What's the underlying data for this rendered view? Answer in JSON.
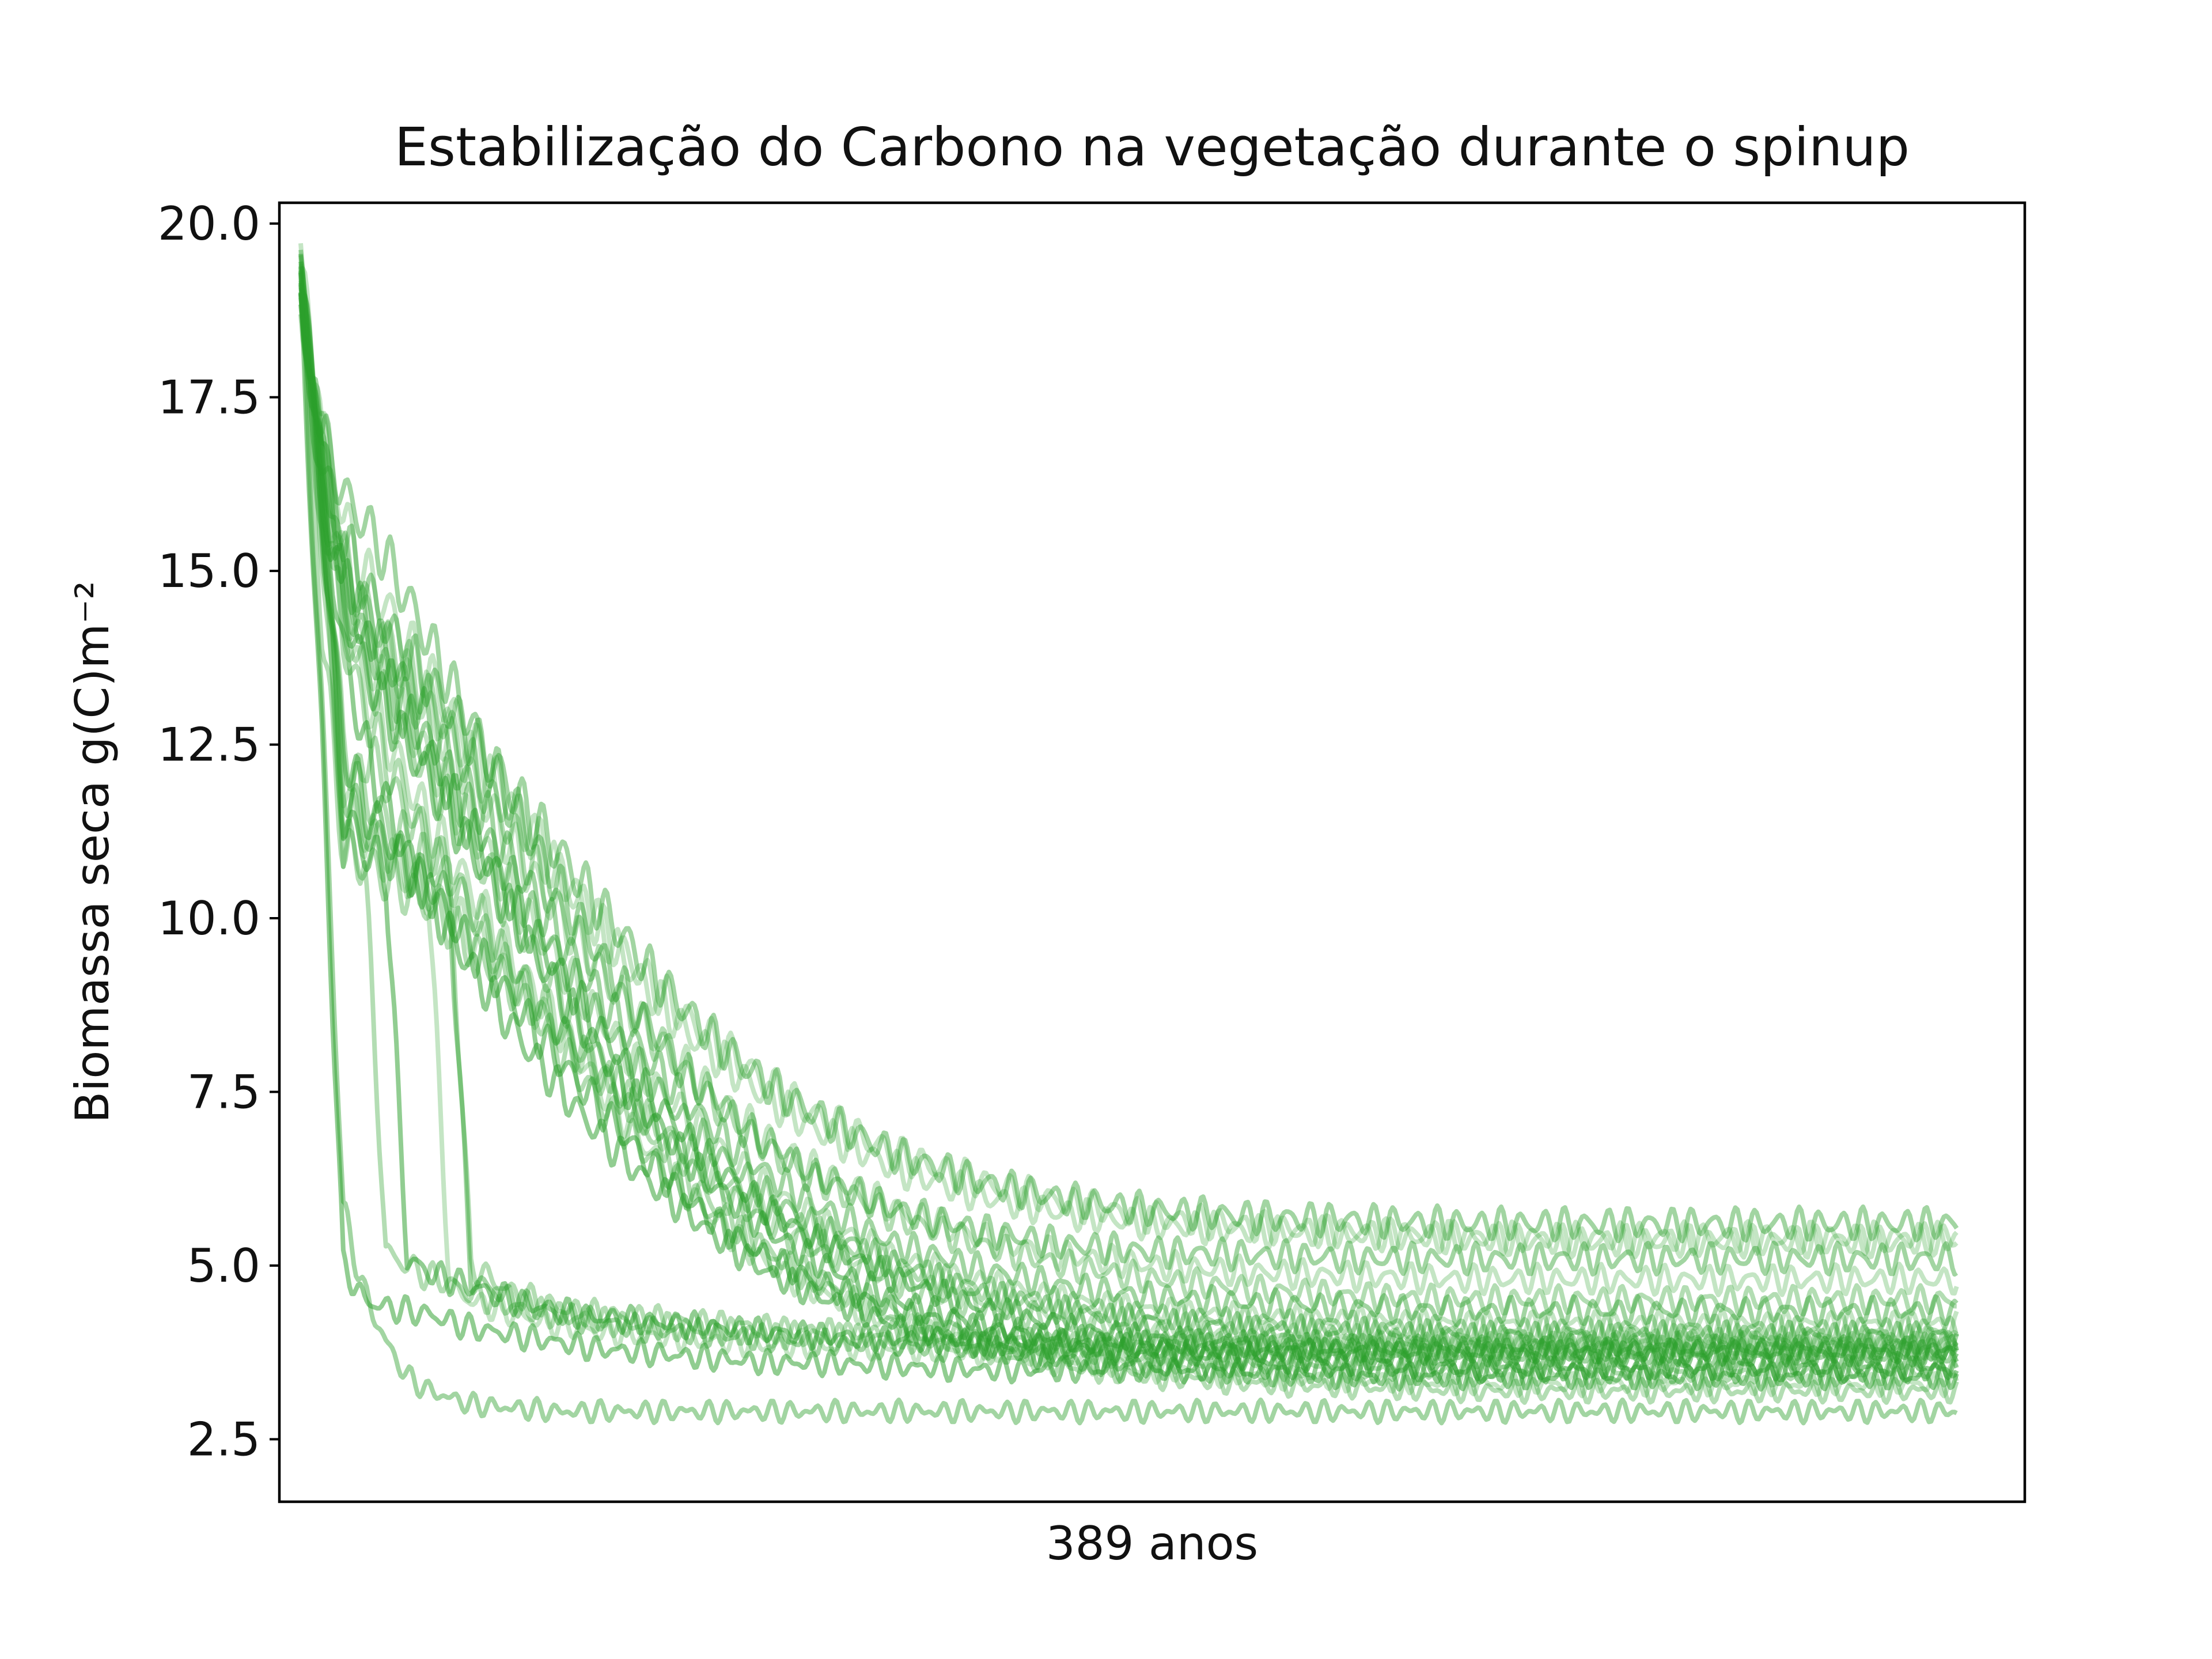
{
  "chart_data": {
    "type": "line",
    "title": "Estabilização do Carbono na vegetação durante o spinup",
    "xlabel": "389 anos",
    "ylabel": "Biomassa seca  g(C)m⁻²",
    "ylim": [
      1.6,
      20.3
    ],
    "xlim": [
      -5,
      405
    ],
    "x_ticks_shown": false,
    "y_ticks": [
      2.5,
      5.0,
      7.5,
      10.0,
      12.5,
      15.0,
      17.5,
      20.0
    ],
    "grid": false,
    "legend": "none",
    "line_color": "#2ca02c",
    "x_points": [
      0,
      5,
      10,
      15,
      20,
      25,
      30,
      35,
      40,
      50,
      60,
      70,
      80,
      90,
      100,
      110,
      120,
      140,
      160,
      180,
      200,
      225,
      250,
      275,
      300,
      325,
      350,
      375,
      389
    ],
    "series": [
      {
        "values": [
          19.3,
          17.2,
          15.8,
          15.0,
          14.5,
          14.0,
          13.5,
          13.0,
          12.5,
          11.6,
          10.7,
          9.9,
          9.2,
          8.6,
          8.1,
          7.6,
          7.2,
          6.6,
          6.2,
          5.9,
          5.7,
          5.55,
          5.45,
          5.4,
          5.35,
          5.35,
          5.35,
          5.35,
          5.4
        ]
      },
      {
        "values": [
          19.2,
          16.8,
          15.2,
          14.5,
          14.0,
          13.6,
          13.2,
          12.7,
          12.2,
          11.2,
          10.2,
          9.3,
          8.5,
          7.8,
          7.2,
          6.7,
          6.3,
          5.7,
          5.3,
          5.0,
          4.8,
          4.65,
          4.55,
          4.5,
          4.5,
          4.5,
          4.5,
          4.5,
          4.5
        ]
      },
      {
        "values": [
          19.1,
          16.5,
          14.8,
          14.0,
          13.5,
          13.0,
          12.5,
          12.0,
          11.5,
          10.5,
          9.5,
          8.6,
          7.8,
          7.1,
          6.5,
          6.0,
          5.6,
          5.0,
          4.6,
          4.35,
          4.2,
          4.1,
          4.05,
          4.0,
          4.0,
          4.0,
          4.0,
          4.0,
          4.0
        ]
      },
      {
        "values": [
          19.0,
          16.2,
          14.5,
          13.6,
          13.0,
          12.5,
          12.0,
          11.5,
          11.0,
          10.0,
          9.0,
          8.1,
          7.3,
          6.6,
          6.0,
          5.5,
          5.1,
          4.5,
          4.15,
          3.9,
          3.75,
          3.65,
          3.6,
          3.55,
          3.55,
          3.55,
          3.55,
          3.55,
          3.55
        ]
      },
      {
        "values": [
          19.2,
          16.0,
          14.2,
          13.3,
          12.6,
          12.0,
          11.4,
          10.9,
          10.4,
          9.4,
          8.5,
          7.6,
          6.8,
          6.1,
          5.5,
          5.0,
          4.65,
          4.15,
          3.85,
          3.65,
          3.5,
          3.4,
          3.35,
          3.3,
          3.3,
          3.3,
          3.3,
          3.3,
          3.3
        ]
      },
      {
        "values": [
          19.1,
          15.4,
          11.0,
          12.4,
          12.0,
          11.5,
          11.0,
          10.6,
          10.2,
          9.3,
          8.5,
          7.8,
          7.1,
          6.5,
          6.0,
          5.6,
          5.25,
          4.75,
          4.4,
          4.2,
          4.05,
          3.95,
          3.9,
          3.9,
          3.9,
          3.9,
          3.9,
          3.9,
          3.9
        ]
      },
      {
        "values": [
          19.3,
          16.6,
          15.5,
          14.8,
          14.2,
          13.8,
          13.4,
          13.0,
          12.6,
          11.8,
          11.0,
          10.2,
          9.4,
          8.7,
          8.1,
          7.6,
          7.2,
          6.6,
          6.2,
          5.95,
          5.8,
          5.7,
          5.65,
          5.6,
          5.6,
          5.6,
          5.6,
          5.6,
          5.6
        ]
      },
      {
        "values": [
          19.0,
          16.9,
          14.9,
          14.1,
          13.5,
          12.9,
          12.4,
          11.8,
          11.3,
          10.2,
          9.3,
          8.4,
          7.6,
          6.9,
          6.3,
          5.8,
          5.4,
          4.8,
          4.4,
          4.1,
          3.95,
          3.85,
          3.8,
          3.75,
          3.75,
          3.75,
          3.75,
          3.75,
          3.75
        ]
      },
      {
        "values": [
          19.2,
          17.0,
          15.2,
          14.4,
          13.9,
          13.4,
          13.0,
          12.5,
          12.0,
          11.0,
          10.1,
          9.3,
          8.5,
          7.9,
          7.3,
          6.8,
          6.4,
          5.8,
          5.4,
          5.15,
          5.0,
          4.9,
          4.85,
          4.8,
          4.8,
          4.8,
          4.8,
          4.8,
          4.8
        ]
      },
      {
        "values": [
          19.3,
          16.4,
          14.4,
          13.6,
          13.1,
          12.6,
          12.1,
          11.6,
          11.1,
          10.0,
          9.0,
          8.0,
          7.1,
          6.3,
          5.7,
          5.2,
          4.8,
          4.2,
          3.8,
          3.55,
          3.4,
          3.3,
          3.25,
          3.2,
          3.2,
          3.2,
          3.2,
          3.2,
          3.2
        ]
      },
      {
        "values": [
          19.1,
          16.7,
          15.0,
          14.3,
          13.8,
          13.3,
          12.8,
          12.3,
          11.8,
          10.8,
          9.8,
          8.9,
          8.1,
          7.4,
          6.8,
          6.3,
          5.9,
          5.3,
          4.95,
          4.7,
          4.55,
          4.45,
          4.4,
          4.35,
          4.35,
          4.35,
          4.35,
          4.35,
          4.35
        ]
      },
      {
        "values": [
          19.2,
          15.8,
          12.5,
          11.6,
          11.2,
          10.8,
          10.4,
          10.0,
          9.6,
          8.8,
          8.0,
          7.3,
          6.6,
          6.0,
          5.5,
          5.1,
          4.8,
          4.35,
          4.1,
          3.95,
          3.85,
          3.8,
          3.75,
          3.75,
          3.75,
          3.75,
          3.75,
          3.75,
          3.75
        ]
      },
      {
        "values": [
          19.3,
          16.3,
          11.6,
          11.3,
          11.0,
          10.7,
          10.4,
          10.1,
          9.8,
          9.1,
          8.4,
          7.8,
          7.2,
          6.6,
          6.1,
          5.7,
          5.35,
          4.85,
          4.5,
          4.3,
          4.15,
          4.05,
          4.0,
          3.95,
          3.95,
          3.95,
          3.95,
          3.95,
          3.95
        ]
      },
      {
        "values": [
          19.2,
          14.2,
          11.0,
          10.8,
          10.6,
          10.4,
          10.2,
          9.9,
          9.6,
          9.0,
          8.4,
          7.8,
          7.2,
          6.7,
          6.2,
          5.8,
          5.5,
          5.0,
          4.65,
          4.45,
          4.3,
          4.2,
          4.15,
          4.1,
          4.1,
          4.1,
          4.1,
          4.1,
          4.1
        ]
      },
      {
        "values": [
          19.1,
          17.0,
          16.1,
          15.7,
          15.2,
          14.6,
          14.0,
          13.4,
          12.8,
          11.6,
          10.5,
          9.5,
          8.6,
          7.8,
          7.2,
          6.7,
          6.3,
          5.8,
          5.5,
          5.3,
          5.2,
          5.15,
          5.1,
          5.1,
          5.1,
          5.1,
          5.1,
          5.1,
          5.1
        ]
      },
      {
        "values": [
          19.2,
          16.0,
          13.9,
          12.5,
          11.6,
          10.9,
          10.3,
          9.8,
          9.3,
          8.4,
          7.6,
          6.9,
          6.3,
          5.8,
          5.3,
          4.9,
          4.6,
          4.15,
          3.85,
          3.65,
          3.55,
          3.45,
          3.4,
          3.4,
          3.4,
          3.4,
          3.4,
          3.4,
          3.4
        ]
      },
      {
        "values": [
          19.3,
          16.9,
          15.0,
          14.3,
          13.9,
          13.5,
          13.1,
          12.7,
          12.3,
          11.5,
          10.7,
          9.9,
          9.1,
          8.4,
          7.9,
          7.4,
          7.0,
          6.4,
          6.0,
          5.75,
          5.6,
          5.5,
          5.45,
          5.4,
          5.4,
          5.4,
          5.4,
          5.4,
          5.4
        ]
      },
      {
        "values": [
          19.3,
          16.5,
          12.5,
          11.8,
          11.4,
          11.1,
          10.8,
          10.6,
          5.0,
          4.6,
          4.4,
          4.3,
          4.25,
          4.2,
          4.15,
          4.1,
          4.05,
          4.0,
          3.95,
          3.9,
          3.9,
          3.85,
          3.85,
          3.85,
          3.85,
          3.85,
          3.85,
          3.85,
          3.85
        ]
      },
      {
        "values": [
          19.2,
          16.0,
          12.0,
          11.3,
          11.0,
          10.7,
          10.5,
          10.3,
          4.8,
          4.5,
          4.3,
          4.2,
          4.1,
          4.05,
          4.0,
          3.95,
          3.9,
          3.85,
          3.8,
          3.75,
          3.75,
          3.7,
          3.7,
          3.7,
          3.7,
          3.7,
          3.7,
          3.7,
          3.7
        ]
      },
      {
        "values": [
          19.1,
          15.8,
          11.5,
          11.0,
          10.7,
          5.1,
          4.9,
          4.8,
          4.7,
          4.5,
          4.35,
          4.25,
          4.2,
          4.15,
          4.1,
          4.05,
          4.0,
          3.95,
          3.9,
          3.85,
          3.85,
          3.8,
          3.8,
          3.8,
          3.8,
          3.8,
          3.8,
          3.8,
          3.8
        ]
      },
      {
        "values": [
          19.3,
          16.2,
          11.8,
          11.2,
          10.9,
          10.6,
          10.4,
          4.7,
          4.5,
          4.3,
          4.15,
          4.05,
          4.0,
          3.95,
          3.9,
          3.85,
          3.85,
          3.8,
          3.75,
          3.75,
          3.7,
          3.7,
          3.7,
          3.7,
          3.7,
          3.7,
          3.7,
          3.7,
          3.7
        ]
      },
      {
        "values": [
          19.2,
          15.5,
          11.2,
          10.8,
          5.2,
          5.0,
          4.85,
          4.75,
          4.6,
          4.4,
          4.3,
          4.2,
          4.15,
          4.1,
          4.05,
          4.0,
          4.0,
          3.95,
          3.9,
          3.9,
          3.85,
          3.85,
          3.85,
          3.85,
          3.85,
          3.85,
          3.85,
          3.85,
          3.85
        ]
      },
      {
        "values": [
          19.2,
          13.0,
          5.8,
          4.6,
          3.9,
          3.4,
          3.2,
          3.1,
          3.0,
          2.95,
          2.9,
          2.9,
          2.9,
          2.9,
          2.9,
          2.9,
          2.9,
          2.9,
          2.9,
          2.9,
          2.9,
          2.9,
          2.9,
          2.9,
          2.9,
          2.9,
          2.9,
          2.9,
          2.9
        ]
      },
      {
        "values": [
          19.0,
          12.5,
          5.0,
          4.5,
          4.4,
          4.35,
          4.3,
          4.2,
          4.1,
          4.0,
          3.9,
          3.8,
          3.75,
          3.7,
          3.65,
          3.6,
          3.6,
          3.55,
          3.5,
          3.5,
          3.5,
          3.5,
          3.5,
          3.5,
          3.5,
          3.5,
          3.5,
          3.5,
          3.5
        ]
      },
      {
        "values": [
          19.2,
          16.6,
          14.6,
          13.8,
          13.3,
          12.8,
          12.3,
          11.8,
          11.3,
          10.3,
          9.4,
          8.6,
          7.8,
          7.2,
          6.6,
          6.1,
          5.7,
          5.1,
          4.75,
          4.5,
          4.35,
          4.25,
          4.2,
          4.15,
          4.15,
          4.15,
          4.15,
          4.15,
          4.15
        ]
      },
      {
        "values": [
          19.1,
          16.3,
          14.0,
          13.0,
          12.3,
          11.7,
          11.1,
          10.6,
          10.1,
          9.1,
          8.2,
          7.4,
          6.7,
          6.1,
          5.6,
          5.2,
          4.85,
          4.35,
          4.0,
          3.8,
          3.65,
          3.55,
          3.5,
          3.45,
          3.45,
          3.45,
          3.45,
          3.45,
          3.45
        ]
      }
    ]
  }
}
